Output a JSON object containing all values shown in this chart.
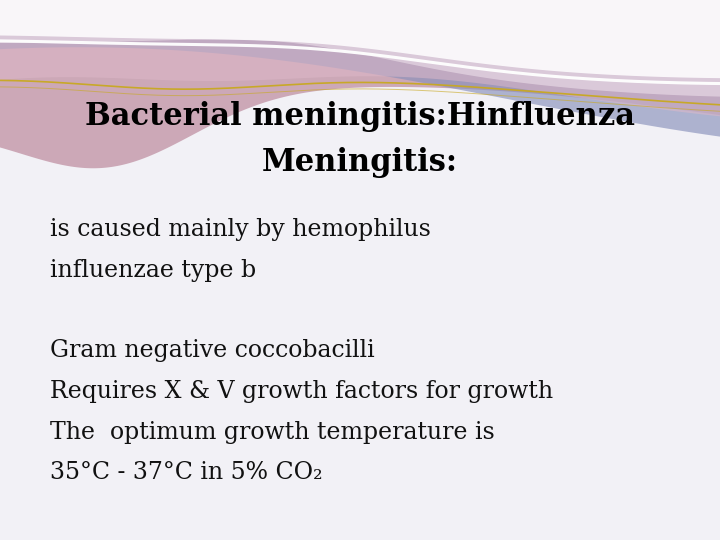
{
  "title_line1": "Bacterial meningitis:Hinfluenza",
  "title_line2": "Meningitis:",
  "body_lines": [
    "is caused mainly by hemophilus",
    "influenzae type b",
    "",
    "Gram negative coccobacilli",
    "Requires X & V growth factors for growth",
    "The  optimum growth temperature is",
    "35°C - 37°C in 5% CO₂"
  ],
  "bg_color": "#f2f1f6",
  "title_color": "#000000",
  "body_color": "#111111",
  "title_fontsize": 22,
  "body_fontsize": 17
}
